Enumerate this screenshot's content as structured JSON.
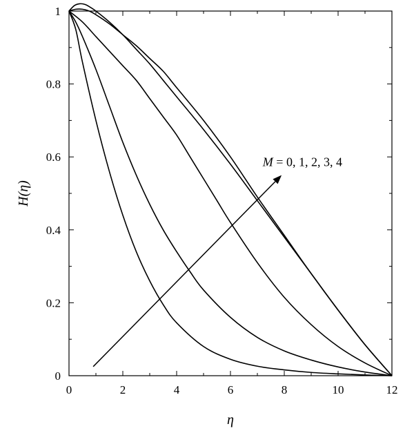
{
  "chart_data": {
    "type": "line",
    "xlabel": "η",
    "ylabel": "H(η)",
    "xlim": [
      0,
      12
    ],
    "ylim": [
      0,
      1
    ],
    "xticks": [
      0,
      2,
      4,
      6,
      8,
      10,
      12
    ],
    "yticks": [
      0,
      0.2,
      0.4,
      0.6,
      0.8,
      1
    ],
    "xtick_labels": [
      "0",
      "2",
      "4",
      "6",
      "8",
      "10",
      "12"
    ],
    "ytick_labels": [
      "0",
      "0.2",
      "0.4",
      "0.6",
      "0.8",
      "1"
    ],
    "grid": false,
    "annotation": {
      "variable": "M",
      "text": " = 0, 1, 2, 3, 4",
      "arrow_from": [
        0.9,
        0.025
      ],
      "arrow_to": [
        7.9,
        0.55
      ],
      "text_at": [
        7.2,
        0.575
      ]
    },
    "series": [
      {
        "x": [
          0,
          0.25,
          0.5,
          1,
          1.5,
          2,
          2.5,
          3,
          3.5,
          4,
          5,
          6,
          7,
          8,
          9,
          10,
          11,
          12
        ],
        "y": [
          1.0,
          0.95,
          0.86,
          0.7,
          0.56,
          0.44,
          0.34,
          0.26,
          0.195,
          0.145,
          0.08,
          0.045,
          0.026,
          0.016,
          0.009,
          0.005,
          0.002,
          0.0
        ]
      },
      {
        "x": [
          0,
          0.25,
          0.5,
          1,
          1.5,
          2,
          2.5,
          3,
          3.5,
          4,
          4.5,
          5,
          6,
          7,
          8,
          9,
          10,
          11,
          12
        ],
        "y": [
          1.0,
          0.97,
          0.93,
          0.84,
          0.74,
          0.64,
          0.55,
          0.47,
          0.4,
          0.34,
          0.285,
          0.235,
          0.16,
          0.105,
          0.068,
          0.043,
          0.024,
          0.01,
          0.0
        ]
      },
      {
        "x": [
          0,
          0.5,
          1,
          1.5,
          2,
          2.5,
          3,
          3.5,
          4,
          4.5,
          5,
          5.5,
          6,
          7,
          8,
          9,
          10,
          11,
          12
        ],
        "y": [
          1.0,
          0.97,
          0.93,
          0.89,
          0.85,
          0.81,
          0.76,
          0.71,
          0.66,
          0.6,
          0.54,
          0.48,
          0.42,
          0.31,
          0.215,
          0.14,
          0.08,
          0.035,
          0.0
        ]
      },
      {
        "x": [
          0,
          0.25,
          0.5,
          0.75,
          1,
          1.5,
          2,
          2.5,
          3,
          3.5,
          4,
          5,
          6,
          7,
          8,
          9,
          10,
          11,
          12
        ],
        "y": [
          1.0,
          1.005,
          1.005,
          1.0,
          0.99,
          0.965,
          0.935,
          0.905,
          0.87,
          0.835,
          0.79,
          0.7,
          0.6,
          0.49,
          0.385,
          0.28,
          0.18,
          0.085,
          0.0
        ]
      },
      {
        "x": [
          0,
          0.2,
          0.4,
          0.6,
          0.8,
          1,
          1.5,
          2,
          2.5,
          3,
          3.5,
          4,
          5,
          6,
          7,
          8,
          9,
          10,
          11,
          12
        ],
        "y": [
          1.0,
          1.015,
          1.02,
          1.018,
          1.01,
          1.0,
          0.97,
          0.935,
          0.895,
          0.855,
          0.81,
          0.765,
          0.675,
          0.58,
          0.48,
          0.38,
          0.28,
          0.18,
          0.085,
          0.0
        ]
      }
    ]
  }
}
